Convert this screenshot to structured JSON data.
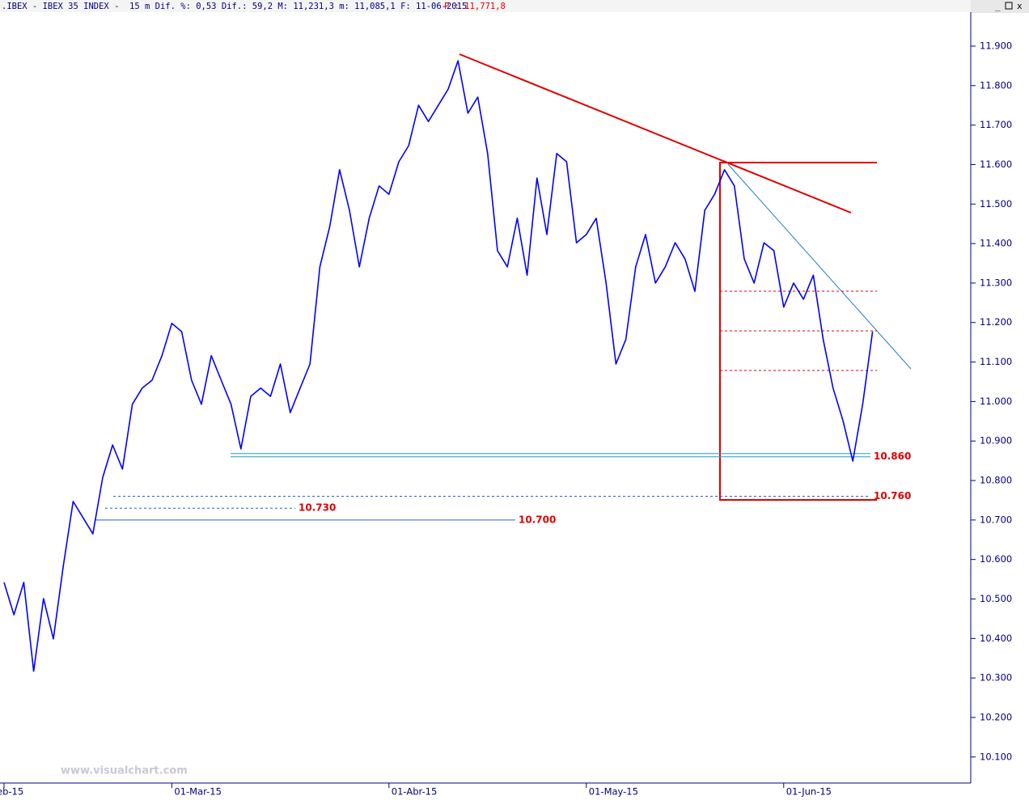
{
  "header": {
    "info": ".IBEX - IBEX 35 INDEX -  15 m Dif. %: 0,53 Dif.: 59,2 M: 11,231,3 m: 11,085,1 F: 11-06-2015",
    "price": "P : 11,771,8"
  },
  "watermark": "www.visualchart.com",
  "chart_data": {
    "type": "line",
    "color": "#0000ff",
    "categories": [
      "eb-15",
      null,
      null,
      null,
      null,
      null,
      null,
      null,
      null,
      null,
      null,
      null,
      null,
      null,
      null,
      null,
      null,
      "01-Mar-15",
      null,
      null,
      null,
      null,
      null,
      null,
      null,
      null,
      null,
      null,
      null,
      null,
      null,
      null,
      null,
      null,
      null,
      null,
      null,
      null,
      null,
      "01-Abr-15",
      null,
      null,
      null,
      null,
      null,
      null,
      null,
      null,
      null,
      null,
      null,
      null,
      null,
      null,
      null,
      null,
      null,
      null,
      null,
      "01-May-15",
      null,
      null,
      null,
      null,
      null,
      null,
      null,
      null,
      null,
      null,
      null,
      null,
      null,
      null,
      null,
      null,
      null,
      null,
      null,
      "01-Jun-15",
      null,
      null,
      null,
      null,
      null,
      null,
      null,
      null,
      null
    ],
    "values": [
      10542,
      10460,
      10542,
      10317,
      10501,
      10399,
      10583,
      10747,
      10706,
      10665,
      10808,
      10890,
      10829,
      10993,
      11034,
      11054,
      11116,
      11198,
      11177,
      11054,
      10993,
      11116,
      11054,
      10993,
      10880,
      11013,
      11034,
      11013,
      11095,
      10972,
      11034,
      11095,
      11341,
      11443,
      11587,
      11484,
      11341,
      11464,
      11546,
      11525,
      11607,
      11648,
      11750,
      11709,
      11750,
      11791,
      11863,
      11730,
      11771,
      11628,
      11382,
      11341,
      11464,
      11320,
      11566,
      11423,
      11628,
      11607,
      11402,
      11423,
      11464,
      11300,
      11095,
      11157,
      11341,
      11423,
      11300,
      11341,
      11402,
      11361,
      11279,
      11484,
      11525,
      11587,
      11546,
      11361,
      11300,
      11402,
      11382,
      11239,
      11300,
      11259,
      11320,
      11157,
      11034,
      10952,
      10849,
      10993,
      11177
    ],
    "ylim": [
      10034,
      11986
    ],
    "yticks": [
      {
        "value": 11900,
        "label": "11.900"
      },
      {
        "value": 11800,
        "label": "11.800"
      },
      {
        "value": 11700,
        "label": "11.700"
      },
      {
        "value": 11600,
        "label": "11.600"
      },
      {
        "value": 11500,
        "label": "11.500"
      },
      {
        "value": 11400,
        "label": "11.400"
      },
      {
        "value": 11300,
        "label": "11.300"
      },
      {
        "value": 11200,
        "label": "11.200"
      },
      {
        "value": 11100,
        "label": "11.100"
      },
      {
        "value": 11000,
        "label": "11.000"
      },
      {
        "value": 10900,
        "label": "10.900"
      },
      {
        "value": 10800,
        "label": "10.800"
      },
      {
        "value": 10700,
        "label": "10.700"
      },
      {
        "value": 10600,
        "label": "10.600"
      },
      {
        "value": 10500,
        "label": "10.500"
      },
      {
        "value": 10400,
        "label": "10.400"
      },
      {
        "value": 10300,
        "label": "10.300"
      },
      {
        "value": 10200,
        "label": "10.200"
      },
      {
        "value": 10100,
        "label": "10.100"
      }
    ],
    "levels": [
      {
        "value": 10860,
        "label": "10.860"
      },
      {
        "value": 10760,
        "label": "10.760"
      },
      {
        "value": 10730,
        "label": "10.730"
      },
      {
        "value": 10700,
        "label": "10.700"
      }
    ]
  }
}
